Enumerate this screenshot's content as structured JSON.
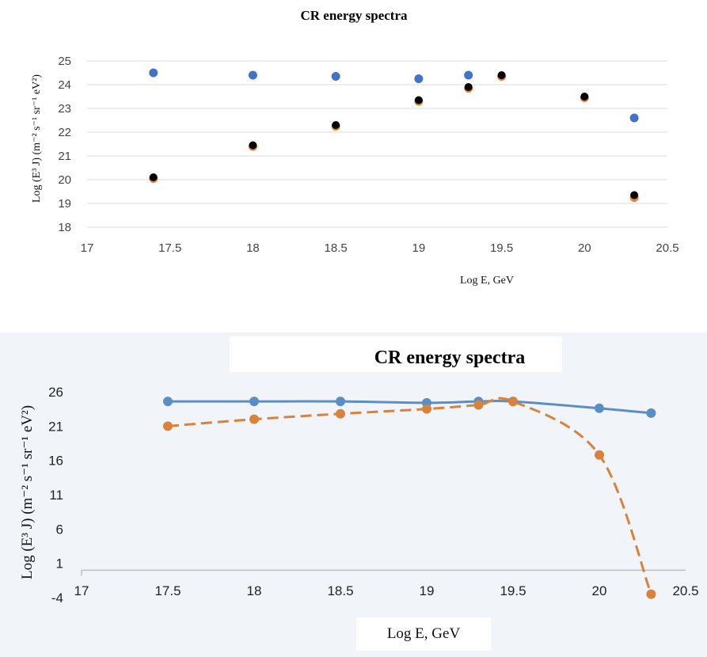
{
  "chart_data": [
    {
      "type": "scatter",
      "title": "CR energy spectra",
      "xlabel": "Log E, GeV",
      "ylabel": "Log (E³ J) (m⁻² s⁻¹ sr⁻¹ eV²)",
      "xlim": [
        17,
        20.5
      ],
      "ylim": [
        18,
        25
      ],
      "xticks": [
        17,
        17.5,
        18,
        18.5,
        19,
        19.5,
        20,
        20.5
      ],
      "yticks": [
        18,
        19,
        20,
        21,
        22,
        23,
        24,
        25
      ],
      "grid": true,
      "legend": "none",
      "colors": [
        "#4472c4",
        "#ed7d31",
        "#000000"
      ],
      "series": [
        {
          "x": [
            17.4,
            18,
            18.5,
            19,
            19.3,
            20.3
          ],
          "y": [
            24.5,
            24.4,
            24.35,
            24.25,
            24.4,
            22.6
          ]
        },
        {
          "x": [
            17.4,
            18,
            18.5,
            19,
            19.3,
            19.5,
            20,
            20.3
          ],
          "y": [
            20.05,
            21.4,
            22.25,
            23.3,
            23.85,
            24.35,
            23.45,
            19.25
          ]
        },
        {
          "x": [
            17.4,
            18,
            18.5,
            19,
            19.3,
            19.5,
            20,
            20.3
          ],
          "y": [
            20.1,
            21.45,
            22.3,
            23.35,
            23.9,
            24.4,
            23.5,
            19.35
          ]
        }
      ]
    },
    {
      "type": "line",
      "title": "CR energy spectra",
      "xlabel": "Log E, GeV",
      "ylabel": "Log (E³ J) (m⁻² s⁻¹ sr⁻¹ eV²)",
      "xlim": [
        17,
        20.5
      ],
      "ylim": [
        -4,
        26
      ],
      "xticks": [
        17,
        17.5,
        18,
        18.5,
        19,
        19.5,
        20,
        20.5
      ],
      "yticks": [
        -4,
        1,
        6,
        11,
        16,
        21,
        26
      ],
      "grid": false,
      "legend": "none",
      "colors": [
        "#5b8ec4",
        "#d9823b"
      ],
      "series": [
        {
          "style": "solid",
          "x": [
            17.5,
            18,
            18.5,
            19,
            19.3,
            19.5,
            20,
            20.3
          ],
          "y": [
            24.6,
            24.6,
            24.6,
            24.4,
            24.6,
            24.6,
            23.6,
            22.9
          ]
        },
        {
          "style": "dashed",
          "x": [
            17.5,
            18,
            18.5,
            19,
            19.3,
            19.5,
            20,
            20.3
          ],
          "y": [
            21.0,
            22.0,
            22.8,
            23.5,
            24.1,
            24.6,
            16.8,
            -3.5
          ]
        }
      ]
    }
  ]
}
